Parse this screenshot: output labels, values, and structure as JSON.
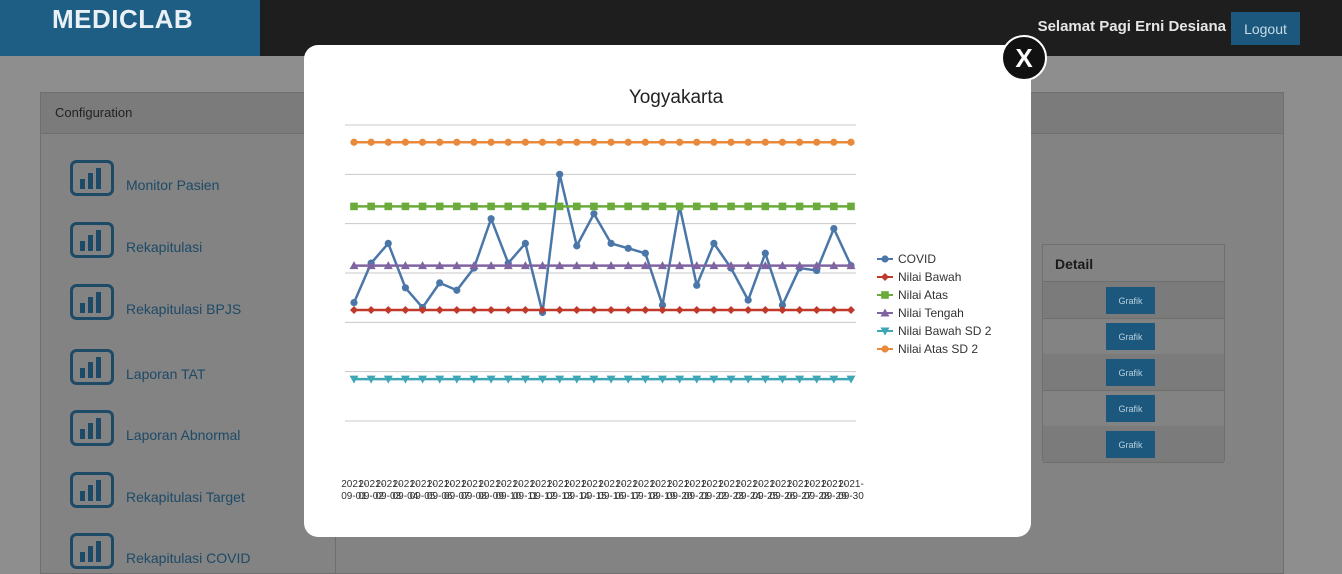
{
  "header": {
    "brand": "MEDICLAB",
    "greeting": "Selamat Pagi Erni Desiana",
    "logout_label": "Logout"
  },
  "panel": {
    "title": "Configuration"
  },
  "menu": {
    "items": [
      {
        "label": "Monitor Pasien",
        "icon": "bar-chart-icon"
      },
      {
        "label": "Rekapitulasi",
        "icon": "bar-chart-icon"
      },
      {
        "label": "Rekapitulasi BPJS",
        "icon": "bar-chart-icon"
      },
      {
        "label": "Laporan TAT",
        "icon": "bar-chart-icon"
      },
      {
        "label": "Laporan Abnormal",
        "icon": "bar-chart-icon"
      },
      {
        "label": "Rekapitulasi Target",
        "icon": "bar-chart-icon"
      },
      {
        "label": "Rekapitulasi COVID",
        "icon": "bar-chart-icon"
      }
    ]
  },
  "table": {
    "detail_header": "Detail",
    "button_label": "Grafik",
    "rows": 5
  },
  "modal": {
    "close_label": "X"
  },
  "colors": {
    "brand_bg": "#1f5e84",
    "button": "#1c587d",
    "covid": "#4a77a8",
    "bawah": "#c0392b",
    "atas": "#6aab3c",
    "tengah": "#8064a2",
    "bawah_sd2": "#3fa6b5",
    "atas_sd2": "#e8893b"
  },
  "chart_data": {
    "type": "line",
    "title": "Yogyakarta",
    "xlabel": "",
    "ylabel": "",
    "grid": true,
    "legend_position": "right",
    "x": [
      "2021-09-01",
      "2021-09-02",
      "2021-09-03",
      "2021-09-04",
      "2021-09-05",
      "2021-09-06",
      "2021-09-07",
      "2021-09-08",
      "2021-09-09",
      "2021-09-10",
      "2021-09-11",
      "2021-09-12",
      "2021-09-13",
      "2021-09-14",
      "2021-09-15",
      "2021-09-16",
      "2021-09-17",
      "2021-09-18",
      "2021-09-19",
      "2021-09-20",
      "2021-09-21",
      "2021-09-22",
      "2021-09-23",
      "2021-09-24",
      "2021-09-25",
      "2021-09-26",
      "2021-09-27",
      "2021-09-28",
      "2021-09-29",
      "2021-09-30"
    ],
    "tick_labels": [
      [
        "2021-",
        "09-01"
      ],
      [
        "2021-",
        "09-02"
      ],
      [
        "2021-",
        "09-03"
      ],
      [
        "2021-",
        "09-04"
      ],
      [
        "2021-",
        "09-05"
      ],
      [
        "2021-",
        "09-06"
      ],
      [
        "2021-",
        "09-07"
      ],
      [
        "2021-",
        "09-08"
      ],
      [
        "2021-",
        "09-09"
      ],
      [
        "2021-",
        "09-10"
      ],
      [
        "2021-",
        "09-11"
      ],
      [
        "2021-",
        "09-12"
      ],
      [
        "2021-",
        "09-13"
      ],
      [
        "2021-",
        "09-14"
      ],
      [
        "2021-",
        "09-15"
      ],
      [
        "2021-",
        "09-16"
      ],
      [
        "2021-",
        "09-17"
      ],
      [
        "2021-",
        "09-18"
      ],
      [
        "2021-",
        "09-19"
      ],
      [
        "2021-",
        "09-20"
      ],
      [
        "2021-",
        "09-21"
      ],
      [
        "2021-",
        "09-22"
      ],
      [
        "2021-",
        "09-23"
      ],
      [
        "2021-",
        "09-24"
      ],
      [
        "2021-",
        "09-25"
      ],
      [
        "2021-",
        "09-26"
      ],
      [
        "2021-",
        "09-27"
      ],
      [
        "2021-",
        "09-28"
      ],
      [
        "2021-",
        "09-29"
      ],
      [
        "2021-",
        "09-30"
      ]
    ],
    "ylim": [
      -6,
      6
    ],
    "series": [
      {
        "name": "COVID",
        "color": "#4a77a8",
        "marker": "circle",
        "values": [
          -1.2,
          0.4,
          1.2,
          -0.6,
          -1.4,
          -0.4,
          -0.7,
          0.2,
          2.2,
          0.4,
          1.2,
          -1.6,
          4.0,
          1.1,
          2.4,
          1.2,
          1.0,
          0.8,
          -1.3,
          2.7,
          -0.5,
          1.2,
          0.2,
          -1.1,
          0.8,
          -1.3,
          0.2,
          0.1,
          1.8,
          0.3
        ]
      },
      {
        "name": "Nilai Bawah",
        "color": "#c0392b",
        "marker": "diamond",
        "values": [
          -1.5,
          -1.5,
          -1.5,
          -1.5,
          -1.5,
          -1.5,
          -1.5,
          -1.5,
          -1.5,
          -1.5,
          -1.5,
          -1.5,
          -1.5,
          -1.5,
          -1.5,
          -1.5,
          -1.5,
          -1.5,
          -1.5,
          -1.5,
          -1.5,
          -1.5,
          -1.5,
          -1.5,
          -1.5,
          -1.5,
          -1.5,
          -1.5,
          -1.5,
          -1.5
        ]
      },
      {
        "name": "Nilai Atas",
        "color": "#6aab3c",
        "marker": "square",
        "values": [
          2.7,
          2.7,
          2.7,
          2.7,
          2.7,
          2.7,
          2.7,
          2.7,
          2.7,
          2.7,
          2.7,
          2.7,
          2.7,
          2.7,
          2.7,
          2.7,
          2.7,
          2.7,
          2.7,
          2.7,
          2.7,
          2.7,
          2.7,
          2.7,
          2.7,
          2.7,
          2.7,
          2.7,
          2.7,
          2.7
        ]
      },
      {
        "name": "Nilai Tengah",
        "color": "#8064a2",
        "marker": "triangle-up",
        "values": [
          0.3,
          0.3,
          0.3,
          0.3,
          0.3,
          0.3,
          0.3,
          0.3,
          0.3,
          0.3,
          0.3,
          0.3,
          0.3,
          0.3,
          0.3,
          0.3,
          0.3,
          0.3,
          0.3,
          0.3,
          0.3,
          0.3,
          0.3,
          0.3,
          0.3,
          0.3,
          0.3,
          0.3,
          0.3,
          0.3
        ]
      },
      {
        "name": "Nilai Bawah SD 2",
        "color": "#3fa6b5",
        "marker": "triangle-down",
        "values": [
          -4.3,
          -4.3,
          -4.3,
          -4.3,
          -4.3,
          -4.3,
          -4.3,
          -4.3,
          -4.3,
          -4.3,
          -4.3,
          -4.3,
          -4.3,
          -4.3,
          -4.3,
          -4.3,
          -4.3,
          -4.3,
          -4.3,
          -4.3,
          -4.3,
          -4.3,
          -4.3,
          -4.3,
          -4.3,
          -4.3,
          -4.3,
          -4.3,
          -4.3,
          -4.3
        ]
      },
      {
        "name": "Nilai Atas SD 2",
        "color": "#e8893b",
        "marker": "circle",
        "values": [
          5.3,
          5.3,
          5.3,
          5.3,
          5.3,
          5.3,
          5.3,
          5.3,
          5.3,
          5.3,
          5.3,
          5.3,
          5.3,
          5.3,
          5.3,
          5.3,
          5.3,
          5.3,
          5.3,
          5.3,
          5.3,
          5.3,
          5.3,
          5.3,
          5.3,
          5.3,
          5.3,
          5.3,
          5.3,
          5.3
        ]
      }
    ]
  }
}
